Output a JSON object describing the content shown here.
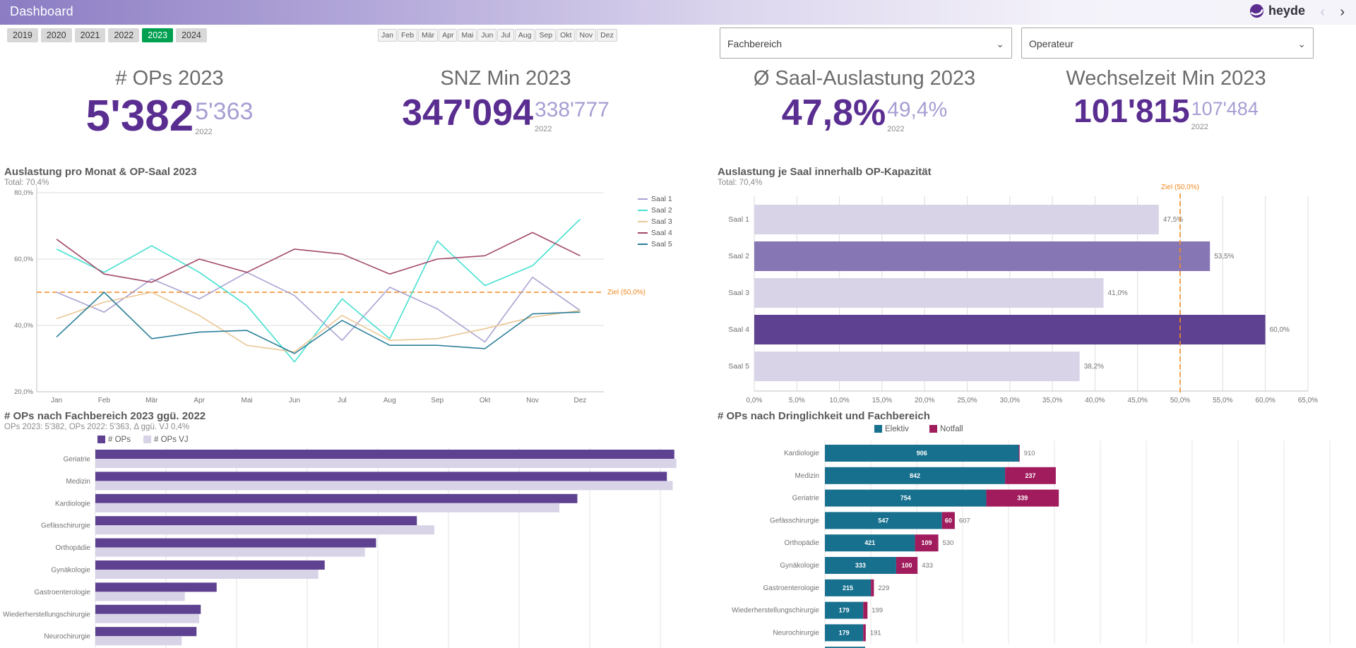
{
  "header": {
    "title": "Dashboard",
    "brand": "heyde",
    "back_icon": "‹",
    "forward_icon": "›"
  },
  "filters": {
    "years": [
      {
        "label": "2019",
        "selected": false
      },
      {
        "label": "2020",
        "selected": false
      },
      {
        "label": "2021",
        "selected": false
      },
      {
        "label": "2022",
        "selected": false
      },
      {
        "label": "2023",
        "selected": true
      },
      {
        "label": "2024",
        "selected": false
      }
    ],
    "months": [
      "Jan",
      "Feb",
      "Mär",
      "Apr",
      "Mai",
      "Jun",
      "Jul",
      "Aug",
      "Sep",
      "Okt",
      "Nov",
      "Dez"
    ],
    "selects": [
      {
        "placeholder": "Fachbereich"
      },
      {
        "placeholder": "Operateur"
      }
    ]
  },
  "kpis": [
    {
      "title": "# OPs 2023",
      "value": "5'382",
      "prev_value": "5'363",
      "prev_label": "2022"
    },
    {
      "title": "SNZ Min 2023",
      "value": "347'094",
      "prev_value": "338'777",
      "prev_label": "2022"
    },
    {
      "title": "Ø Saal-Auslastung 2023",
      "value": "47,8%",
      "prev_value": "49,4%",
      "prev_label": "2022"
    },
    {
      "title": "Wechselzeit Min 2023",
      "value": "101'815",
      "prev_value": "107'484",
      "prev_label": "2022"
    }
  ],
  "colors": {
    "year_selected_green": "#00a050",
    "target_orange": "#f28a22",
    "purple_dark": "#5e4190",
    "purple_medium": "#8776b4",
    "purple_light": "#d9d3e8",
    "elektiv_teal": "#17708e",
    "notfall_magenta": "#a01c5d",
    "kpi_purple": "#5a2e91",
    "kpi_purple_light": "#a79ed3"
  },
  "chart_data": [
    {
      "type": "line",
      "title": "Auslastung pro Monat & OP-Saal 2023",
      "subtitle": "Total: 70,4%",
      "x_labels": [
        "Jan",
        "Feb",
        "Mär",
        "Apr",
        "Mai",
        "Jun",
        "Jul",
        "Aug",
        "Sep",
        "Okt",
        "Nov",
        "Dez"
      ],
      "ylim": [
        20,
        80
      ],
      "y_ticks": [
        {
          "value": 80,
          "label": "80,0%"
        },
        {
          "value": 60,
          "label": "60,0%"
        },
        {
          "value": 40,
          "label": "40,0%"
        },
        {
          "value": 20,
          "label": "20,0%"
        }
      ],
      "target": {
        "value": 50,
        "label": "Ziel (50,0%)"
      },
      "legend_position": "right",
      "series": [
        {
          "name": "Saal 1",
          "color": "#a9a3d2",
          "values": [
            50,
            44,
            54,
            48,
            56,
            49,
            35.5,
            51.5,
            45,
            35,
            54.5,
            44.5
          ]
        },
        {
          "name": "Saal 2",
          "color": "#45e0d0",
          "values": [
            63,
            56,
            64,
            56,
            46,
            29,
            48,
            36,
            65.5,
            52,
            58,
            72
          ]
        },
        {
          "name": "Saal 3",
          "color": "#eac795",
          "values": [
            42,
            47,
            50,
            43,
            34,
            32,
            43,
            35.5,
            36,
            39,
            42.5,
            44.5
          ]
        },
        {
          "name": "Saal 4",
          "color": "#a3496b",
          "values": [
            66,
            55.5,
            53,
            60,
            56,
            63,
            61.5,
            55.5,
            60,
            61,
            68,
            61
          ]
        },
        {
          "name": "Saal 5",
          "color": "#2b7f99",
          "values": [
            36.5,
            50,
            36,
            38,
            38.5,
            31.5,
            41.5,
            34,
            34,
            33,
            43.5,
            44
          ]
        }
      ]
    },
    {
      "type": "bar",
      "title": "Auslastung je Saal innerhalb OP-Kapazität",
      "subtitle": "Total: 70,4%",
      "categories": [
        "Saal 1",
        "Saal 2",
        "Saal 3",
        "Saal 4",
        "Saal 5"
      ],
      "values": [
        47.5,
        53.5,
        41.0,
        60.0,
        38.2
      ],
      "value_labels": [
        "47,5%",
        "53,5%",
        "41,0%",
        "60,0%",
        "38,2%"
      ],
      "bar_colors": [
        "#d9d3e8",
        "#8776b4",
        "#d9d3e8",
        "#5e4190",
        "#d9d3e8"
      ],
      "xlim": [
        0,
        65
      ],
      "x_ticks": [
        {
          "value": 0,
          "label": "0,0%"
        },
        {
          "value": 5,
          "label": "5,0%"
        },
        {
          "value": 10,
          "label": "10,0%"
        },
        {
          "value": 15,
          "label": "15,0%"
        },
        {
          "value": 20,
          "label": "20,0%"
        },
        {
          "value": 25,
          "label": "25,0%"
        },
        {
          "value": 30,
          "label": "30,0%"
        },
        {
          "value": 35,
          "label": "35,0%"
        },
        {
          "value": 40,
          "label": "40,0%"
        },
        {
          "value": 45,
          "label": "45,0%"
        },
        {
          "value": 50,
          "label": "50,0%"
        },
        {
          "value": 55,
          "label": "55,0%"
        },
        {
          "value": 60,
          "label": "60,0%"
        },
        {
          "value": 65,
          "label": "65,0%"
        }
      ],
      "target": {
        "value": 50,
        "label": "Ziel (50,0%)"
      }
    },
    {
      "type": "grouped_bar",
      "title": "# OPs nach Fachbereich 2023 ggü. 2022",
      "subtitle": "OPs 2023: 5'382, OPs 2022: 5'363, Δ ggü. VJ 0,4%",
      "categories": [
        "Geriatrie",
        "Medizin",
        "Kardiologie",
        "Gefässchirurgie",
        "Orthopädie",
        "Gynäkologie",
        "Gastroenterologie",
        "Wiederherstellungschirurgie",
        "Neurochirurgie"
      ],
      "series": [
        {
          "name": "# OPs",
          "color": "#5e4190",
          "values": [
            1093,
            1079,
            910,
            607,
            530,
            433,
            229,
            199,
            191
          ]
        },
        {
          "name": "# OPs VJ",
          "color": "#d9d3e8",
          "values": [
            1097,
            1090,
            876,
            640,
            509,
            421,
            169,
            196,
            163
          ]
        }
      ],
      "xlim": [
        0,
        1460
      ]
    },
    {
      "type": "stacked_bar",
      "title": "# OPs nach Dringlichkeit und Fachbereich",
      "categories": [
        "Kardiologie",
        "Medizin",
        "Geriatrie",
        "Gefässchirurgie",
        "Orthopädie",
        "Gynäkologie",
        "Gastroenterologie",
        "Wiederherstellungschirurgie",
        "Neurochirurgie",
        ""
      ],
      "series": [
        {
          "name": "Elektiv",
          "color": "#17708e",
          "values": [
            906,
            842,
            754,
            547,
            421,
            333,
            215,
            179,
            179,
            188
          ],
          "labels": [
            "906",
            "842",
            "754",
            "547",
            "421",
            "333",
            "215",
            "179",
            "179",
            ""
          ]
        },
        {
          "name": "Notfall",
          "color": "#a01c5d",
          "values": [
            4,
            237,
            339,
            60,
            109,
            100,
            14,
            20,
            12,
            0
          ],
          "labels": [
            "",
            "237",
            "339",
            "60",
            "109",
            "100",
            "",
            "",
            "",
            ""
          ]
        }
      ],
      "total_labels": [
        "910",
        "",
        "",
        "607",
        "530",
        "433",
        "229",
        "199",
        "191",
        ""
      ],
      "xlim": [
        0,
        2300
      ]
    }
  ]
}
